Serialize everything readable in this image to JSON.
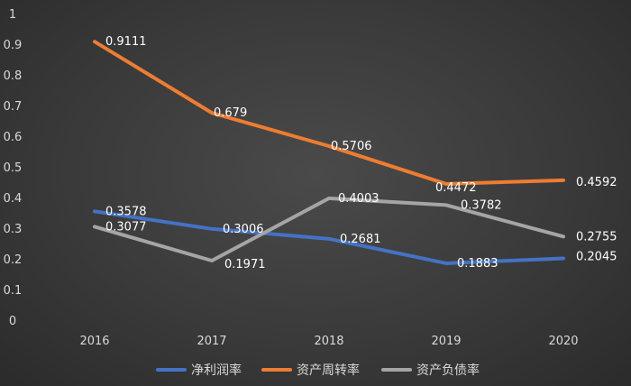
{
  "chart_data": {
    "type": "line",
    "title": "",
    "xlabel": "",
    "ylabel": "",
    "categories": [
      "2016",
      "2017",
      "2018",
      "2019",
      "2020"
    ],
    "ylim": [
      0,
      1
    ],
    "yticks": [
      "0",
      "0.1",
      "0.2",
      "0.3",
      "0.4",
      "0.5",
      "0.6",
      "0.7",
      "0.8",
      "0.9",
      "1"
    ],
    "grid": false,
    "legend": "bottom",
    "series": [
      {
        "name": "净利润率",
        "color": "#4472c4",
        "values": [
          0.3578,
          0.3006,
          0.2681,
          0.1883,
          0.2045
        ],
        "labels": [
          "0.3578",
          "0.3006",
          "0.2681",
          "0.1883",
          "0.2045"
        ]
      },
      {
        "name": "资产周转率",
        "color": "#ed7d31",
        "values": [
          0.9111,
          0.679,
          0.5706,
          0.4472,
          0.4592
        ],
        "labels": [
          "0.9111",
          "0.679",
          "0.5706",
          "0.4472",
          "0.4592"
        ]
      },
      {
        "name": "资产负债率",
        "color": "#a5a5a5",
        "values": [
          0.3077,
          0.1971,
          0.4003,
          0.3782,
          0.2755
        ],
        "labels": [
          "0.3077",
          "0.1971",
          "0.4003",
          "0.3782",
          "0.2755"
        ]
      }
    ]
  }
}
